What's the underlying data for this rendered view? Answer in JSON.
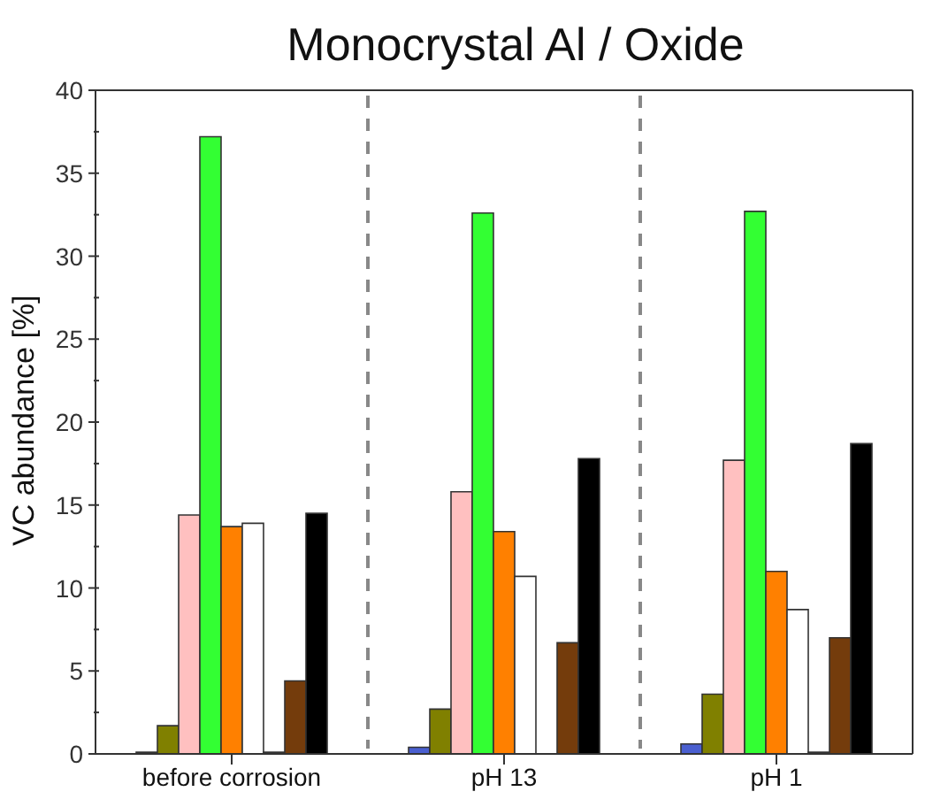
{
  "chart_data": {
    "type": "bar",
    "title": "Monocrystal Al / Oxide",
    "ylabel": "VC abundance [%]",
    "categories": [
      "before corrosion",
      "pH 13",
      "pH 1"
    ],
    "ylim": [
      0,
      40
    ],
    "yticks": [
      0,
      {
        "value": 2.5,
        "label": null
      },
      5,
      {
        "value": 7.5,
        "label": null
      },
      10,
      {
        "value": 12.5,
        "label": null
      },
      15,
      {
        "value": 17.5,
        "label": null
      },
      20,
      {
        "value": 22.5,
        "label": null
      },
      25,
      {
        "value": 27.5,
        "label": null
      },
      30,
      {
        "value": 32.5,
        "label": null
      },
      35,
      {
        "value": 37.5,
        "label": null
      },
      40
    ],
    "series": [
      {
        "color": "#4a5fd0",
        "values": [
          0.1,
          0.4,
          0.6
        ]
      },
      {
        "color": "#808000",
        "values": [
          1.7,
          2.7,
          3.6
        ]
      },
      {
        "color": "#ffc0c0",
        "values": [
          14.4,
          15.8,
          17.7
        ]
      },
      {
        "color": "#33ff33",
        "values": [
          37.2,
          32.6,
          32.7
        ]
      },
      {
        "color": "#ff8000",
        "values": [
          13.7,
          13.4,
          11.0
        ]
      },
      {
        "color": "#ffffff",
        "values": [
          13.9,
          10.7,
          8.7
        ]
      },
      {
        "color": "#808080",
        "values": [
          0.1,
          0,
          0.1
        ]
      },
      {
        "color": "#743c0c",
        "values": [
          4.4,
          6.7,
          7.0
        ]
      },
      {
        "color": "#000000",
        "values": [
          14.5,
          17.8,
          18.7
        ]
      }
    ],
    "grid": false,
    "legend": false
  }
}
